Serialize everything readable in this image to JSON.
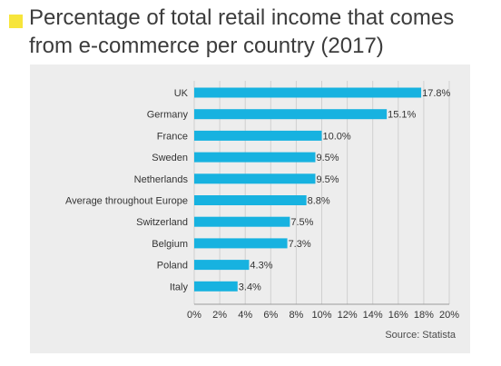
{
  "title": {
    "line1": "Percentage of total retail income that comes",
    "line2": "from e-commerce per country (2017)"
  },
  "colors": {
    "bar": "#17b2e0",
    "accent": "#f7e53b",
    "panel_bg": "#ededed",
    "grid": "#d0d0d0",
    "text": "#333333"
  },
  "source": "Source: Statista",
  "chart_data": {
    "type": "bar",
    "orientation": "horizontal",
    "title": "Percentage of total retail income that comes from e-commerce per country (2017)",
    "xlabel": "",
    "ylabel": "",
    "xlim": [
      0,
      20
    ],
    "grid": true,
    "categories": [
      "UK",
      "Germany",
      "France",
      "Sweden",
      "Netherlands",
      "Average throughout Europe",
      "Switzerland",
      "Belgium",
      "Poland",
      "Italy"
    ],
    "values": [
      17.8,
      15.1,
      10.0,
      9.5,
      9.5,
      8.8,
      7.5,
      7.3,
      4.3,
      3.4
    ],
    "value_labels": [
      "17.8%",
      "15.1%",
      "10.0%",
      "9.5%",
      "9.5%",
      "8.8%",
      "7.5%",
      "7.3%",
      "4.3%",
      "3.4%"
    ],
    "x_ticks": [
      0,
      2,
      4,
      6,
      8,
      10,
      12,
      14,
      16,
      18,
      20
    ],
    "x_tick_labels": [
      "0%",
      "2%",
      "4%",
      "6%",
      "8%",
      "10%",
      "12%",
      "14%",
      "16%",
      "18%",
      "20%"
    ]
  }
}
